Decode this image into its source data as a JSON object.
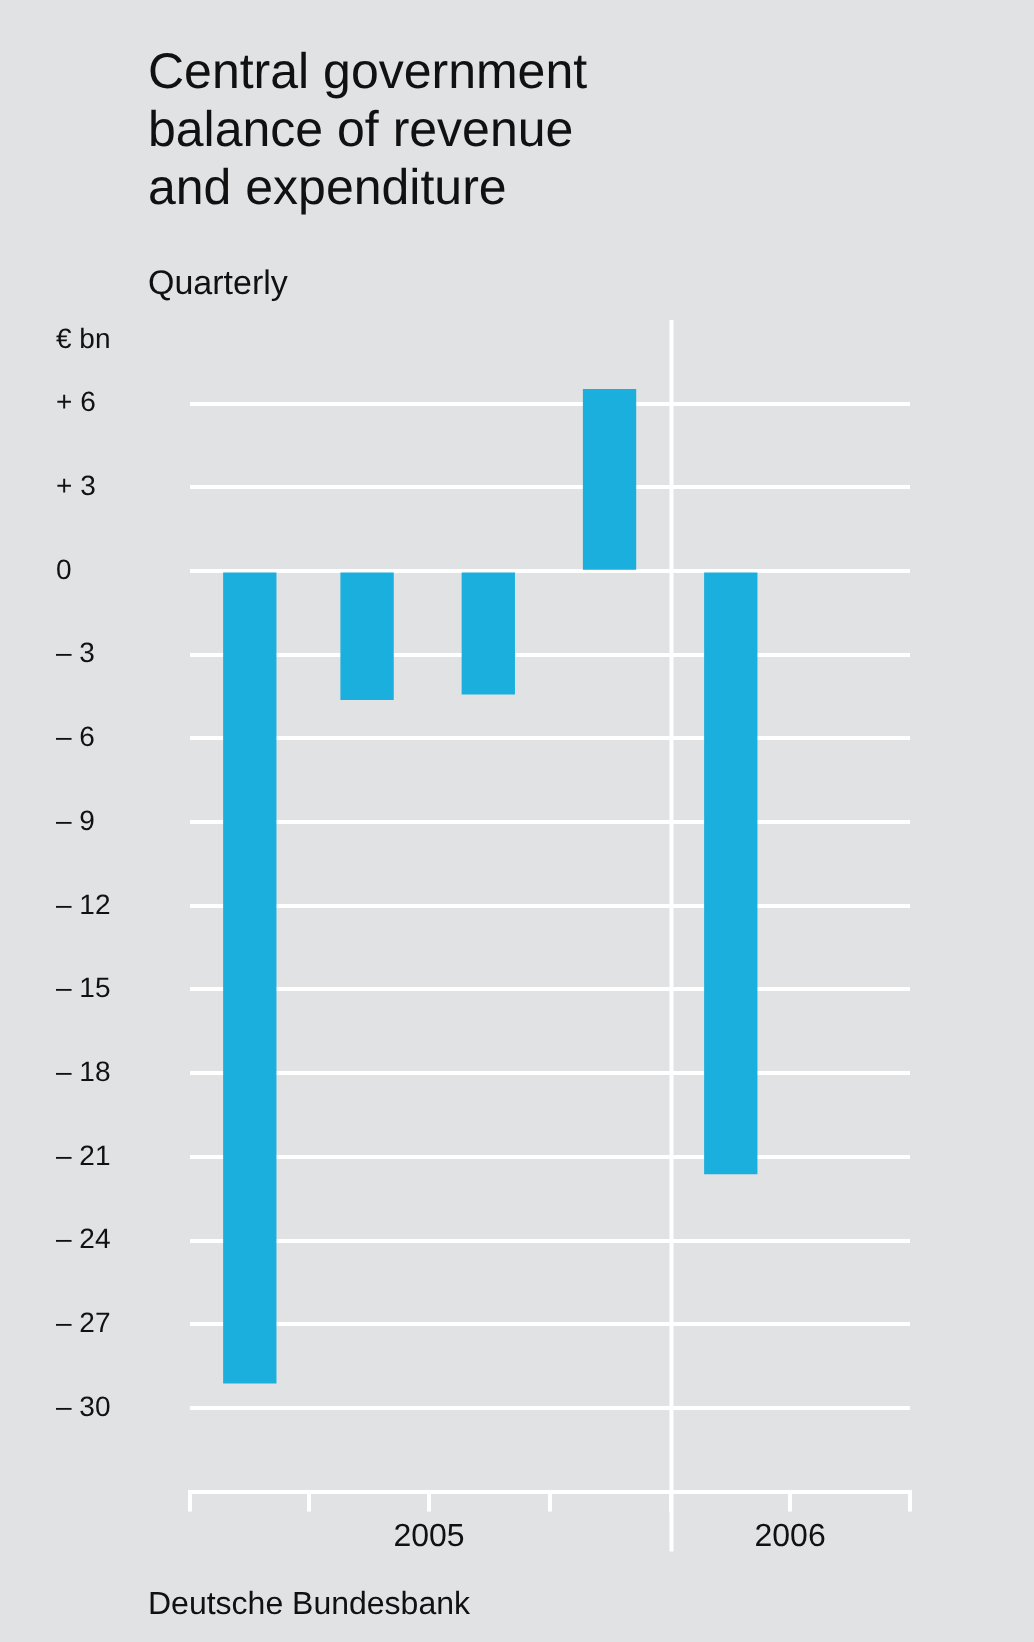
{
  "chart_data": {
    "type": "bar",
    "title": "Central government\nbalance of revenue\nand expenditure",
    "subtitle": "Quarterly",
    "ylabel": "€ bn",
    "annotations": [
      "Deutsche Bundesbank"
    ],
    "x": [
      "2005-02-15",
      "2005-05-15",
      "2005-08-15",
      "2005-11-15",
      "2006-02-15"
    ],
    "values": [
      -29.1,
      -4.6,
      -4.4,
      6.5,
      -21.6
    ],
    "color": "#1aafdc",
    "xlim": [
      "2005-01-01",
      "2006-07-01"
    ],
    "xticks": [
      {
        "value": "2005-01-01",
        "label": null
      },
      {
        "value": "2005-04-01",
        "label": null
      },
      {
        "value": "2005-07-01",
        "label": "2005"
      },
      {
        "value": "2005-10-01",
        "label": null
      },
      {
        "value": "2006-01-01",
        "label": null
      },
      {
        "value": "2006-04-01",
        "label": "2006"
      },
      {
        "value": "2006-07-01",
        "label": null
      }
    ],
    "ylim": [
      -33,
      9
    ],
    "yticks": [
      {
        "value": 6,
        "label": "+ 6"
      },
      {
        "value": 3,
        "label": "+ 3"
      },
      0,
      {
        "value": -3,
        "label": "– 3"
      },
      {
        "value": -6,
        "label": "– 6"
      },
      {
        "value": -9,
        "label": "– 9"
      },
      {
        "value": -12,
        "label": "– 12"
      },
      {
        "value": -15,
        "label": "– 15"
      },
      {
        "value": -18,
        "label": "– 18"
      },
      {
        "value": -21,
        "label": "– 21"
      },
      {
        "value": -24,
        "label": "– 24"
      },
      {
        "value": -27,
        "label": "– 27"
      },
      {
        "value": -30,
        "label": "– 30"
      }
    ],
    "ref_lines": [
      {
        "axis": "x",
        "value": "2006-01-01",
        "label": null,
        "color": "#ffffff"
      }
    ],
    "grid": "y",
    "legend": false
  }
}
